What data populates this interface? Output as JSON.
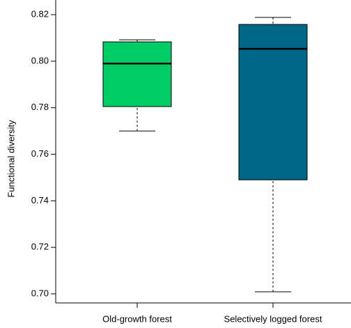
{
  "chart_data": {
    "type": "box",
    "ylabel": "Functional diversity",
    "categories": [
      "Old-growth forest",
      "Selectively logged forest"
    ],
    "colors": [
      "#00cc66",
      "#006688"
    ],
    "stats": [
      {
        "low": 0.77,
        "q1": 0.7805,
        "median": 0.799,
        "q3": 0.8083,
        "high": 0.8092
      },
      {
        "low": 0.7009,
        "q1": 0.749,
        "median": 0.8053,
        "q3": 0.8158,
        "high": 0.8188
      }
    ],
    "ylim": [
      0.6961,
      0.8248
    ],
    "yticks": [
      {
        "value": 0.7,
        "label": "0.70"
      },
      {
        "value": 0.72,
        "label": "0.72"
      },
      {
        "value": 0.74,
        "label": "0.74"
      },
      {
        "value": 0.76,
        "label": "0.76"
      },
      {
        "value": 0.78,
        "label": "0.78"
      },
      {
        "value": 0.8,
        "label": "0.80"
      },
      {
        "value": 0.82,
        "label": "0.82"
      }
    ]
  }
}
